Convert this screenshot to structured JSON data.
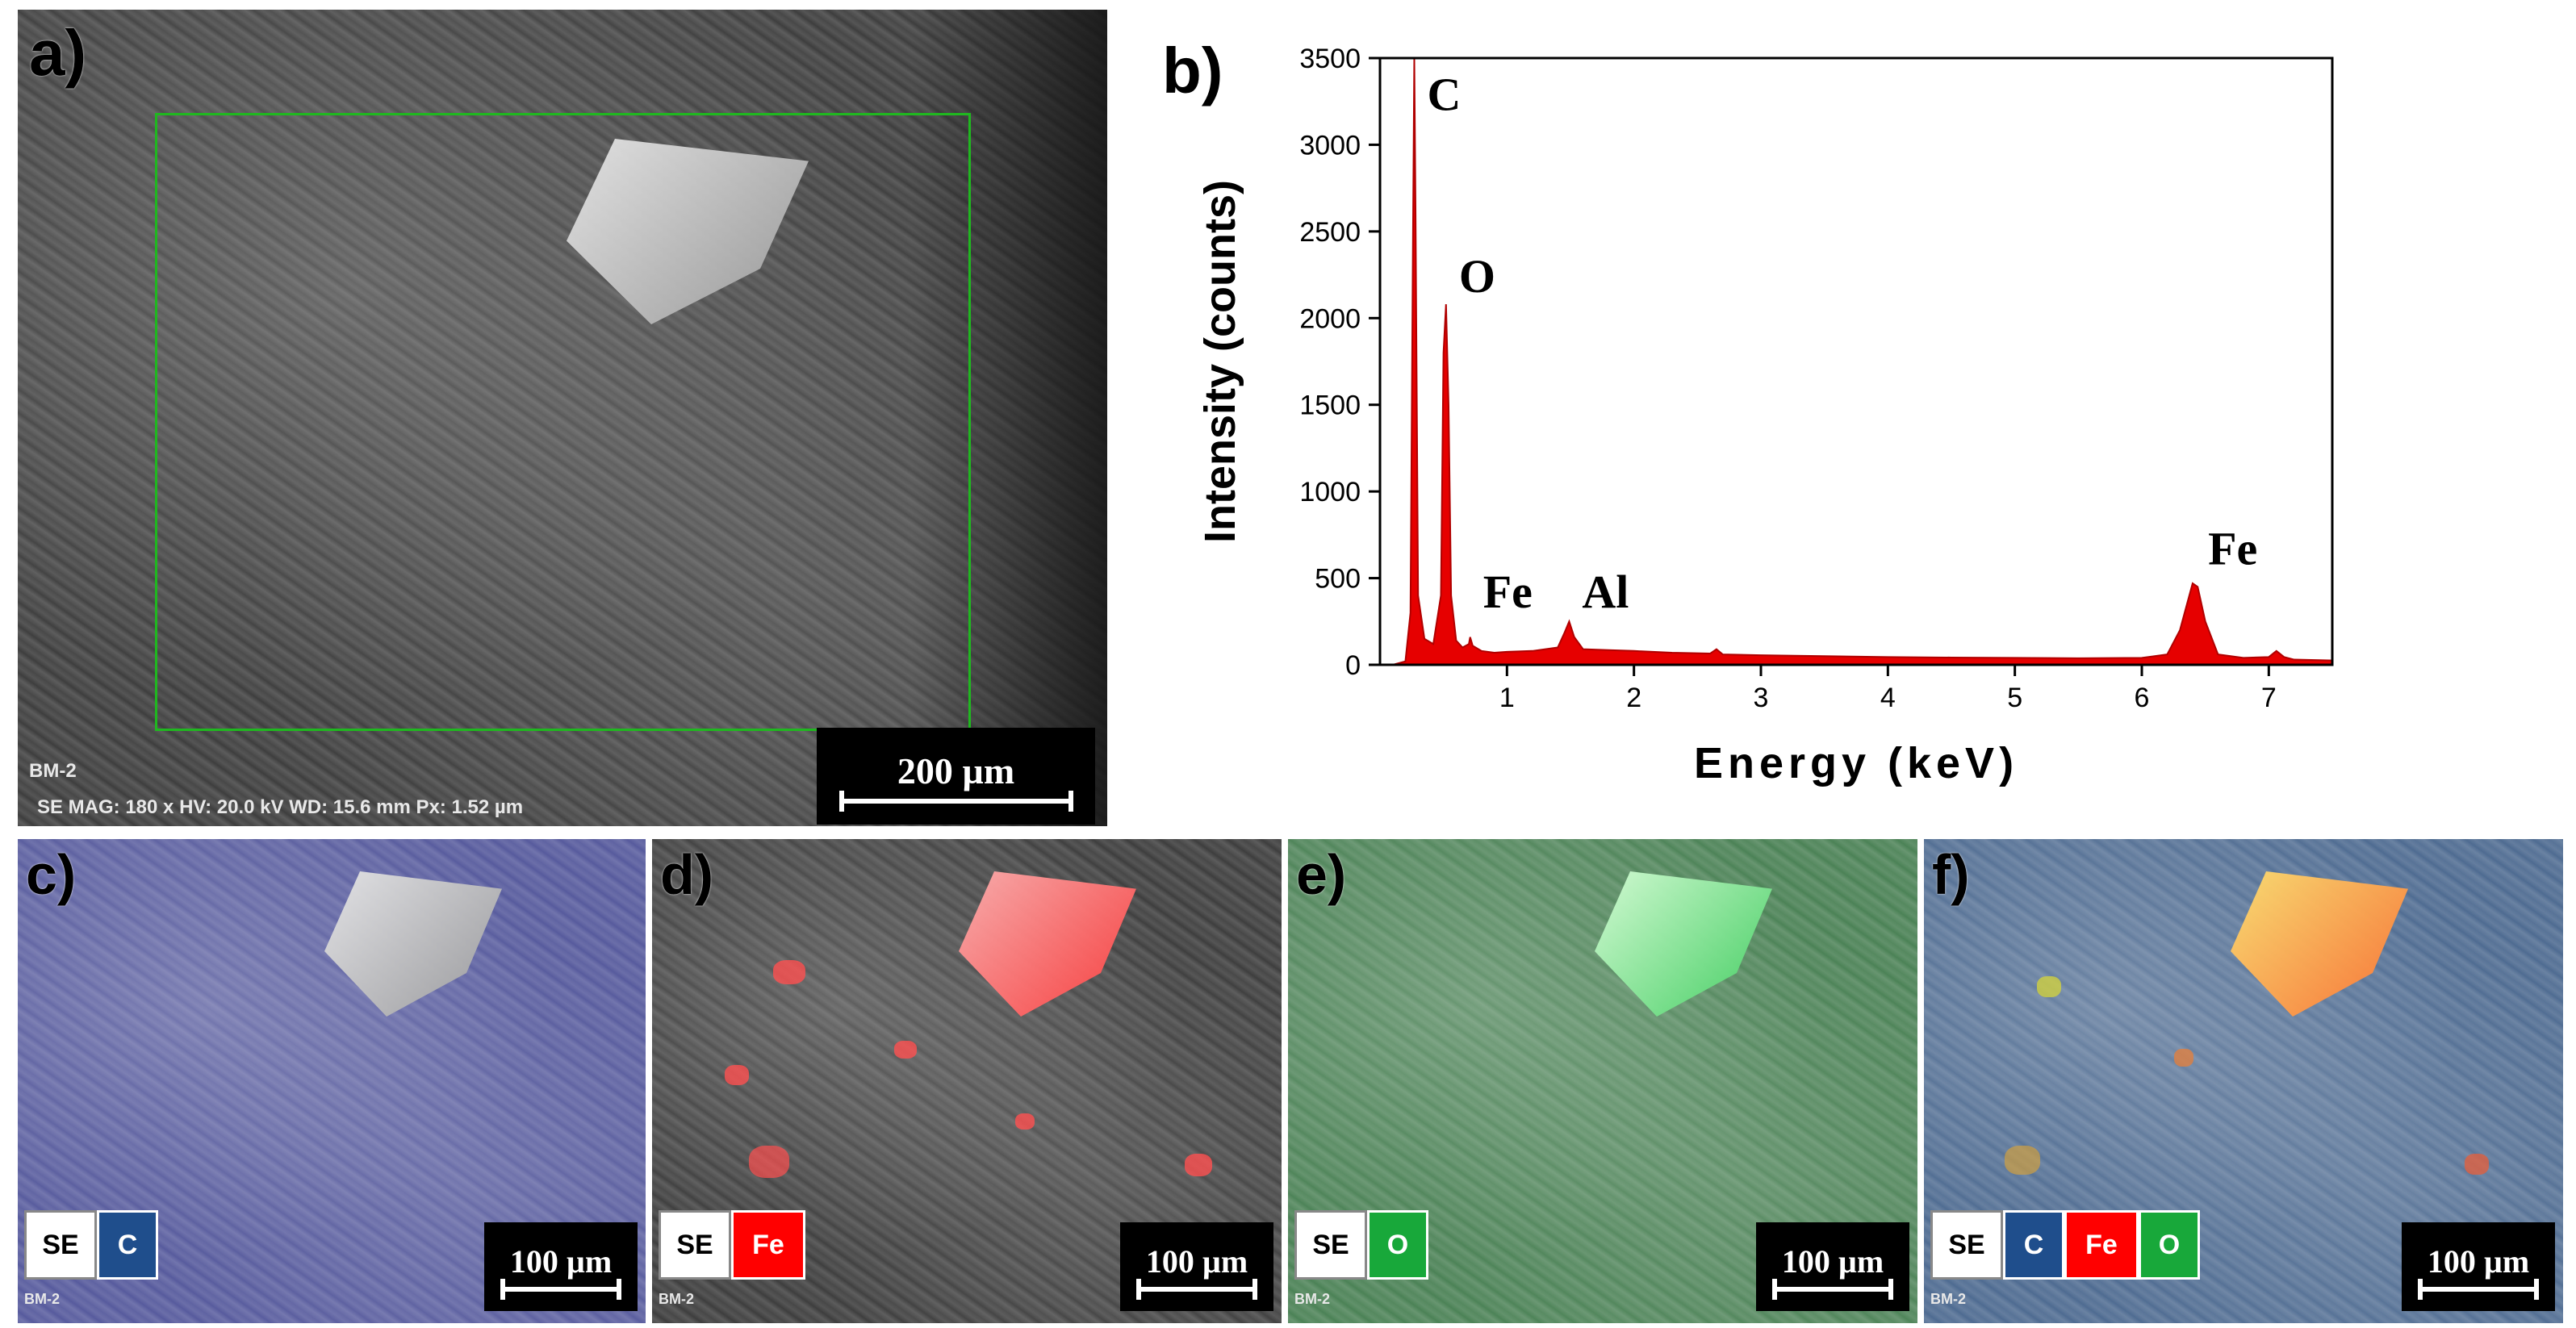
{
  "panels": {
    "a": {
      "letter": "a)",
      "sample_label": "BM-2",
      "meta_line": "SE  MAG: 180 x  HV: 20.0 kV  WD: 15.6 mm  Px: 1.52 µm",
      "scale_bar": "200 µm"
    },
    "b": {
      "letter": "b)"
    },
    "c": {
      "letter": "c)",
      "tags": [
        "SE",
        "C"
      ],
      "scale_bar": "100 µm",
      "sample_label": "BM-2"
    },
    "d": {
      "letter": "d)",
      "tags": [
        "SE",
        "Fe"
      ],
      "scale_bar": "100 µm",
      "sample_label": "BM-2"
    },
    "e": {
      "letter": "e)",
      "tags": [
        "SE",
        "O"
      ],
      "scale_bar": "100 µm",
      "sample_label": "BM-2"
    },
    "f": {
      "letter": "f)",
      "tags": [
        "SE",
        "C",
        "Fe",
        "O"
      ],
      "scale_bar": "100 µm",
      "sample_label": "BM-2"
    }
  },
  "colors": {
    "carbon": "#1f4e8c",
    "iron": "#ff0000",
    "oxygen": "#18a83a",
    "spectrum": "#e60000",
    "roi": "#1fb81f"
  },
  "chart_data": {
    "type": "area",
    "title": "",
    "xlabel": "Energy (keV)",
    "ylabel": "Intensity (counts)",
    "xlim": [
      0,
      7.5
    ],
    "ylim": [
      0,
      3500
    ],
    "xticks": [
      1,
      2,
      3,
      4,
      5,
      6,
      7
    ],
    "yticks": [
      0,
      500,
      1000,
      1500,
      2000,
      2500,
      3000,
      3500
    ],
    "grid": false,
    "series": [
      {
        "x": [
          0.1,
          0.2,
          0.24,
          0.26,
          0.27,
          0.28,
          0.3,
          0.35,
          0.42,
          0.48,
          0.5,
          0.52,
          0.54,
          0.56,
          0.6,
          0.65,
          0.7,
          0.71,
          0.73,
          0.8,
          0.9,
          1.0,
          1.2,
          1.4,
          1.45,
          1.49,
          1.53,
          1.6,
          1.8,
          2.0,
          2.3,
          2.6,
          2.65,
          2.7,
          3.0,
          3.5,
          4.0,
          4.5,
          5.0,
          5.5,
          6.0,
          6.2,
          6.3,
          6.4,
          6.44,
          6.5,
          6.6,
          6.8,
          7.0,
          7.06,
          7.12,
          7.2,
          7.5
        ],
        "y": [
          0,
          20,
          300,
          2500,
          3500,
          2600,
          400,
          150,
          120,
          400,
          1800,
          2080,
          1500,
          400,
          140,
          100,
          120,
          160,
          110,
          80,
          70,
          75,
          80,
          100,
          180,
          250,
          160,
          90,
          85,
          80,
          70,
          65,
          90,
          60,
          55,
          50,
          45,
          42,
          40,
          38,
          40,
          60,
          200,
          470,
          450,
          250,
          60,
          40,
          45,
          80,
          45,
          30,
          25
        ]
      }
    ],
    "annotations": [
      {
        "text": "C",
        "x": 0.27,
        "y": 3200
      },
      {
        "text": "O",
        "x": 0.52,
        "y": 2150
      },
      {
        "text": "Fe",
        "x": 0.71,
        "y": 330
      },
      {
        "text": "Al",
        "x": 1.49,
        "y": 330
      },
      {
        "text": "Fe",
        "x": 6.42,
        "y": 580
      }
    ]
  }
}
